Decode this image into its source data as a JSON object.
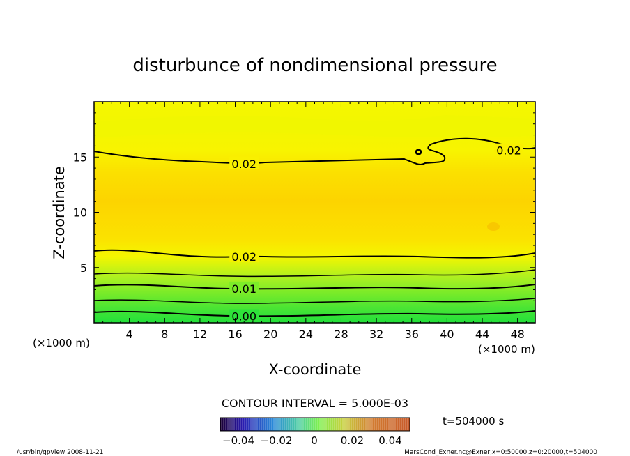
{
  "chart_data": {
    "type": "heatmap",
    "title": "disturbunce of nondimensional pressure",
    "xlabel": "X-coordinate",
    "ylabel": "Z-coordinate",
    "x_unit_left": "(×1000 m)",
    "x_unit_right": "(×1000 m)",
    "xlim": [
      0,
      50
    ],
    "ylim": [
      0,
      20
    ],
    "x_ticks": [
      "4",
      "8",
      "12",
      "16",
      "20",
      "24",
      "28",
      "32",
      "36",
      "40",
      "44",
      "48"
    ],
    "y_ticks": [
      "5",
      "10",
      "15"
    ],
    "contour_interval_text": "CONTOUR INTERVAL = 5.000E-03",
    "time_label": "t=504000 s",
    "colorbar_ticks": [
      "−0.04",
      "−0.02",
      "0",
      "0.02",
      "0.04"
    ],
    "contour_labels": [
      {
        "text": "0.02",
        "x": 17,
        "z": 14.4
      },
      {
        "text": "0.02",
        "x": 47,
        "z": 15.6
      },
      {
        "text": "0.02",
        "x": 17,
        "z": 6.0
      },
      {
        "text": "0.01",
        "x": 17,
        "z": 3.1
      },
      {
        "text": "0.00",
        "x": 17,
        "z": 0.6
      }
    ],
    "field_levels": [
      {
        "z": 0.0,
        "value": 0.0
      },
      {
        "z": 1.0,
        "value": 0.005
      },
      {
        "z": 2.5,
        "value": 0.01
      },
      {
        "z": 4.0,
        "value": 0.015
      },
      {
        "z": 6.0,
        "value": 0.02
      },
      {
        "z": 8.0,
        "value": 0.0225
      },
      {
        "z": 11.0,
        "value": 0.023
      },
      {
        "z": 13.0,
        "value": 0.0215
      },
      {
        "z": 15.0,
        "value": 0.0195
      },
      {
        "z": 18.0,
        "value": 0.0185
      },
      {
        "z": 20.0,
        "value": 0.019
      }
    ],
    "colors": {
      "value_0.000": "#22e03a",
      "value_0.005": "#54e632",
      "value_0.010": "#90ee20",
      "value_0.015": "#d8f41c",
      "value_0.020": "#f8f600",
      "value_0.023": "#fcd400"
    }
  },
  "footer": {
    "left": "/usr/bin/gpview   2008-11-21",
    "right": "MarsCond_Exner.nc@Exner,x=0:50000,z=0:20000,t=504000"
  }
}
